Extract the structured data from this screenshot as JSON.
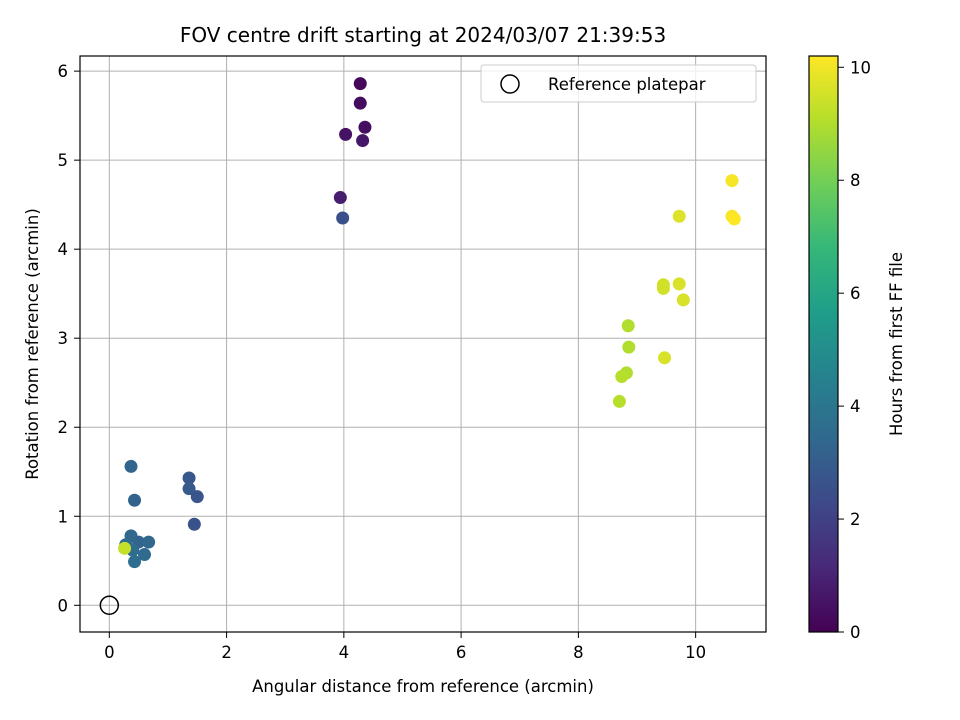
{
  "chart_data": {
    "type": "scatter",
    "title": "FOV centre drift starting at 2024/03/07 21:39:53",
    "xlabel": "Angular distance from reference (arcmin)",
    "ylabel": "Rotation from reference (arcmin)",
    "xlim": [
      -0.5,
      11.2
    ],
    "ylim": [
      -0.3,
      6.17
    ],
    "x_ticks": [
      0,
      2,
      4,
      6,
      8,
      10
    ],
    "y_ticks": [
      0,
      1,
      2,
      3,
      4,
      5,
      6
    ],
    "grid": true,
    "legend": {
      "placement": "top-right",
      "entries": [
        "Reference platepar"
      ]
    },
    "reference_point": {
      "x": 0,
      "y": 0,
      "label": "Reference platepar"
    },
    "colorbar": {
      "label": "Hours from first FF file",
      "range": [
        0,
        10.2
      ],
      "ticks": [
        0,
        2,
        4,
        6,
        8,
        10
      ],
      "colormap": "viridis",
      "stops": [
        "#440154",
        "#482878",
        "#3e4989",
        "#31688e",
        "#26828e",
        "#1f9e89",
        "#35b779",
        "#6ece58",
        "#b5de2b",
        "#fde725"
      ]
    },
    "points": [
      {
        "x": 4.28,
        "y": 5.86,
        "hours": 0.2
      },
      {
        "x": 4.28,
        "y": 5.64,
        "hours": 0.3
      },
      {
        "x": 4.36,
        "y": 5.37,
        "hours": 0.4
      },
      {
        "x": 4.03,
        "y": 5.29,
        "hours": 0.5
      },
      {
        "x": 4.32,
        "y": 5.22,
        "hours": 0.6
      },
      {
        "x": 3.94,
        "y": 4.58,
        "hours": 0.8
      },
      {
        "x": 3.98,
        "y": 4.35,
        "hours": 2.5
      },
      {
        "x": 1.36,
        "y": 1.43,
        "hours": 2.8
      },
      {
        "x": 1.36,
        "y": 1.31,
        "hours": 2.9
      },
      {
        "x": 1.5,
        "y": 1.22,
        "hours": 2.7
      },
      {
        "x": 1.45,
        "y": 0.91,
        "hours": 2.6
      },
      {
        "x": 0.37,
        "y": 1.56,
        "hours": 3.3
      },
      {
        "x": 0.43,
        "y": 1.18,
        "hours": 3.2
      },
      {
        "x": 0.37,
        "y": 0.78,
        "hours": 3.4
      },
      {
        "x": 0.28,
        "y": 0.68,
        "hours": 3.5
      },
      {
        "x": 0.5,
        "y": 0.71,
        "hours": 3.3
      },
      {
        "x": 0.67,
        "y": 0.71,
        "hours": 3.4
      },
      {
        "x": 0.4,
        "y": 0.62,
        "hours": 3.6
      },
      {
        "x": 0.6,
        "y": 0.57,
        "hours": 3.5
      },
      {
        "x": 0.43,
        "y": 0.49,
        "hours": 3.6
      },
      {
        "x": 0.26,
        "y": 0.64,
        "hours": 9.3
      },
      {
        "x": 8.85,
        "y": 3.14,
        "hours": 9.0
      },
      {
        "x": 8.86,
        "y": 2.9,
        "hours": 9.0
      },
      {
        "x": 8.82,
        "y": 2.61,
        "hours": 9.0
      },
      {
        "x": 8.74,
        "y": 2.57,
        "hours": 9.1
      },
      {
        "x": 8.7,
        "y": 2.29,
        "hours": 9.1
      },
      {
        "x": 9.45,
        "y": 3.6,
        "hours": 9.5
      },
      {
        "x": 9.45,
        "y": 3.56,
        "hours": 9.5
      },
      {
        "x": 9.72,
        "y": 3.61,
        "hours": 9.6
      },
      {
        "x": 9.79,
        "y": 3.43,
        "hours": 9.6
      },
      {
        "x": 9.47,
        "y": 2.78,
        "hours": 9.6
      },
      {
        "x": 9.72,
        "y": 4.37,
        "hours": 9.7
      },
      {
        "x": 10.62,
        "y": 4.77,
        "hours": 10.1
      },
      {
        "x": 10.62,
        "y": 4.37,
        "hours": 10.1
      },
      {
        "x": 10.66,
        "y": 4.34,
        "hours": 10.2
      }
    ]
  }
}
